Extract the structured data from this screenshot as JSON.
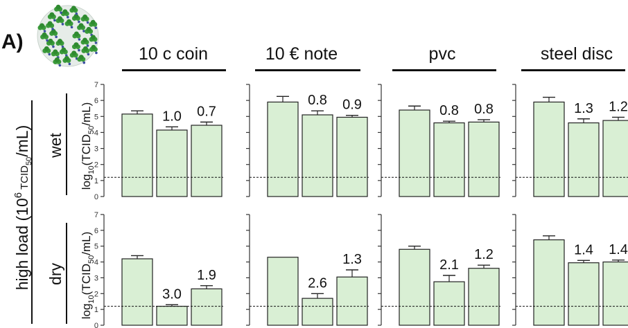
{
  "panel_label": "A)",
  "side_label_main": "high load (10",
  "side_label_sup": "6",
  "side_label_unit": " TCID",
  "side_label_sub": "50",
  "side_label_end": "/mL)",
  "row_labels": [
    "wet",
    "dry"
  ],
  "y_axis_label": {
    "pre": "log",
    "sub1": "10",
    "mid": "(TCID",
    "sub2": "50",
    "post": "/mL)"
  },
  "column_titles": [
    "10 c coin",
    "10 € note",
    "pvc",
    "steel disc"
  ],
  "colors": {
    "bar_fill": "#d9efd4",
    "bar_stroke": "#222222",
    "virus_green": "#3a9a3a",
    "virus_body": "#e6ece8"
  },
  "chart_data": {
    "type": "bar",
    "ylim": [
      0,
      7
    ],
    "yticks": [
      0,
      1,
      2,
      3,
      4,
      5,
      6,
      7
    ],
    "detection_limit": 1.2,
    "panels": [
      {
        "row": "wet",
        "column": "10 c coin",
        "values": [
          5.15,
          4.15,
          4.45
        ],
        "errors": [
          0.2,
          0.2,
          0.2
        ],
        "labels": [
          "",
          "1.0",
          "0.7"
        ]
      },
      {
        "row": "wet",
        "column": "10 € note",
        "values": [
          5.9,
          5.1,
          4.95
        ],
        "errors": [
          0.35,
          0.25,
          0.12
        ],
        "labels": [
          "",
          "0.8",
          "0.9"
        ]
      },
      {
        "row": "wet",
        "column": "pvc",
        "values": [
          5.4,
          4.6,
          4.65
        ],
        "errors": [
          0.25,
          0.1,
          0.15
        ],
        "labels": [
          "",
          "0.8",
          "0.8"
        ]
      },
      {
        "row": "wet",
        "column": "steel disc",
        "values": [
          5.9,
          4.6,
          4.75
        ],
        "errors": [
          0.3,
          0.25,
          0.2
        ],
        "labels": [
          "",
          "1.3",
          "1.2"
        ]
      },
      {
        "row": "dry",
        "column": "10 c coin",
        "values": [
          4.2,
          1.2,
          2.3
        ],
        "errors": [
          0.2,
          0.1,
          0.2
        ],
        "labels": [
          "",
          "3.0",
          "1.9"
        ]
      },
      {
        "row": "dry",
        "column": "10 € note",
        "values": [
          4.3,
          1.7,
          3.05
        ],
        "errors": [
          0.0,
          0.3,
          0.45
        ],
        "labels": [
          "",
          "2.6",
          "1.3"
        ]
      },
      {
        "row": "dry",
        "column": "pvc",
        "values": [
          4.8,
          2.75,
          3.6
        ],
        "errors": [
          0.2,
          0.4,
          0.2
        ],
        "labels": [
          "",
          "2.1",
          "1.2"
        ]
      },
      {
        "row": "dry",
        "column": "steel disc",
        "values": [
          5.4,
          3.95,
          4.0
        ],
        "errors": [
          0.25,
          0.15,
          0.12
        ],
        "labels": [
          "",
          "1.4",
          "1.4"
        ]
      }
    ]
  }
}
